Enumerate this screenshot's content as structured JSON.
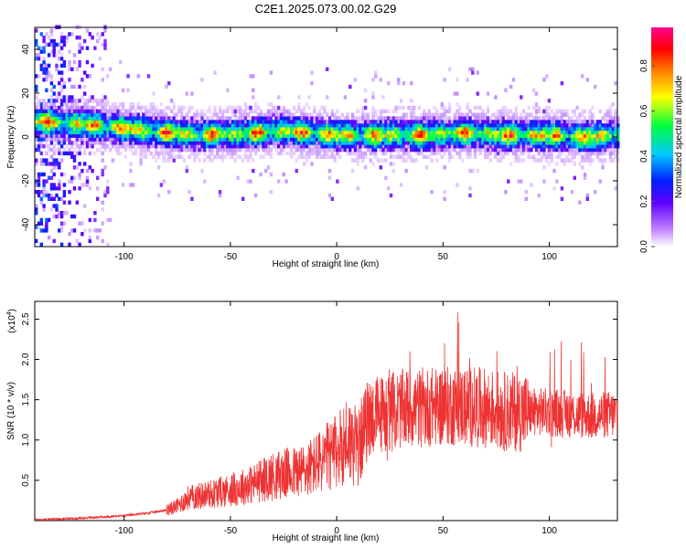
{
  "chart_data": [
    {
      "type": "heatmap",
      "title": "C2E1.2025.073.00.02.G29",
      "xlabel": "Height of straight line (km)",
      "ylabel": "Frequency (Hz)",
      "xlim": [
        -142,
        132
      ],
      "ylim": [
        -50,
        50
      ],
      "xticks": [
        -100,
        -50,
        0,
        50,
        100
      ],
      "yticks": [
        -40,
        -20,
        0,
        20,
        40
      ],
      "colorbar": {
        "label": "Normalized spectral amplitude",
        "range": [
          0,
          0.97
        ],
        "ticks": [
          "0.0",
          "0.2",
          "0.4",
          "0.6",
          "0.8"
        ],
        "ticklabels": [
          "0.0",
          "0.2",
          "0.4",
          "0.6",
          "0.8"
        ],
        "colormap": "rainbow: white - purple - blue - cyan - green - yellow - orange - red - magenta"
      },
      "band": {
        "center_hz_by_height": [
          [
            -140,
            6
          ],
          [
            -120,
            5
          ],
          [
            -100,
            3
          ],
          [
            -80,
            1
          ],
          [
            -60,
            0
          ],
          [
            -40,
            1
          ],
          [
            -25,
            2
          ],
          [
            -15,
            1
          ],
          [
            0,
            0
          ],
          [
            20,
            0
          ],
          [
            40,
            0
          ],
          [
            60,
            1
          ],
          [
            80,
            0
          ],
          [
            100,
            0
          ],
          [
            115,
            -1
          ],
          [
            132,
            0
          ]
        ],
        "noise_region_km": [
          -142,
          -105
        ]
      }
    },
    {
      "type": "line",
      "xlabel": "Height of straight line (km)",
      "ylabel": "SNR (10 * v/v)",
      "yscale_label": "(x10",
      "yscale_exp": "4",
      "xlim": [
        -142,
        132
      ],
      "ylim": [
        0,
        2.72
      ],
      "xticks": [
        -100,
        -50,
        0,
        50,
        100
      ],
      "yticks": [
        0.5,
        1.0,
        1.5,
        2.0,
        2.5
      ],
      "ytick_labels": [
        "0.5",
        "1.0",
        "1.5",
        "2.0",
        "2.5"
      ],
      "line_color": "#ee3333",
      "series": [
        {
          "x": [
            -142,
            -120,
            -100,
            -90,
            -80,
            -75,
            -70,
            -60,
            -50,
            -40,
            -30,
            -25,
            -20,
            -15,
            -10,
            -5,
            0,
            5,
            10,
            15,
            20,
            30,
            40,
            50,
            60,
            70,
            80,
            90,
            100,
            110,
            120,
            132
          ],
          "y": [
            0.01,
            0.03,
            0.06,
            0.09,
            0.13,
            0.18,
            0.28,
            0.33,
            0.38,
            0.45,
            0.55,
            0.58,
            0.6,
            0.62,
            0.7,
            0.78,
            0.85,
            1.02,
            0.9,
            1.28,
            1.32,
            1.38,
            1.4,
            1.42,
            1.42,
            1.4,
            1.35,
            1.35,
            1.35,
            1.32,
            1.3,
            1.32
          ]
        }
      ]
    }
  ]
}
